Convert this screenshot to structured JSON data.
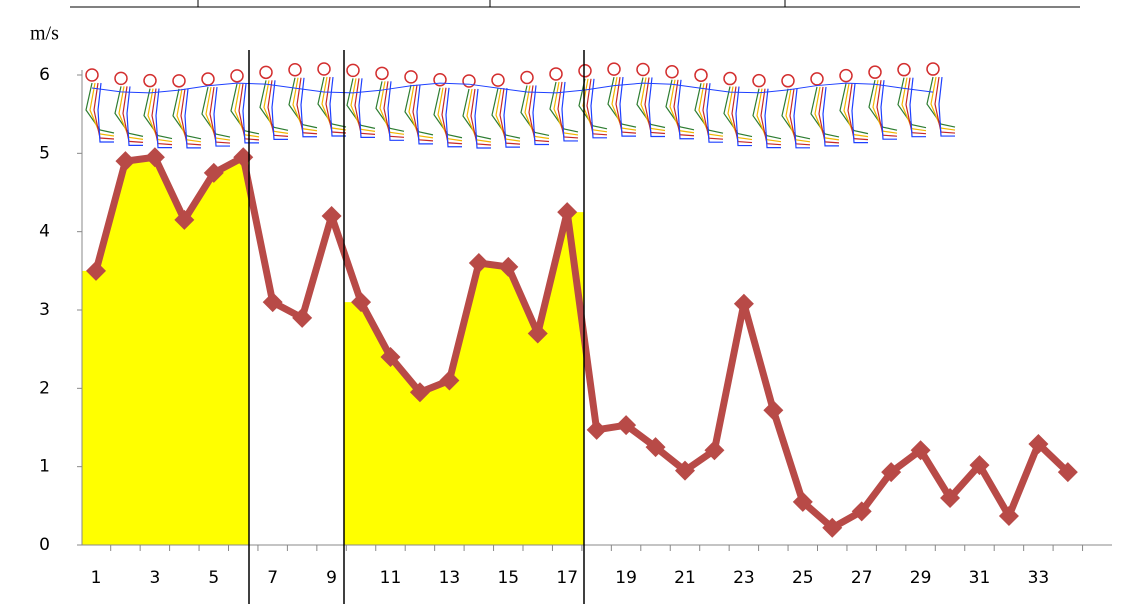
{
  "chart_data": {
    "type": "line",
    "y_label": "m/s",
    "categories": [
      1,
      null,
      3,
      null,
      5,
      null,
      7,
      null,
      9,
      null,
      11,
      null,
      13,
      null,
      15,
      null,
      17,
      null,
      19,
      null,
      21,
      null,
      23,
      null,
      25,
      null,
      27,
      null,
      29,
      null,
      31,
      null,
      33,
      null
    ],
    "values": [
      3.5,
      4.9,
      4.95,
      4.15,
      4.75,
      4.95,
      3.1,
      2.9,
      4.2,
      3.1,
      2.4,
      1.95,
      2.1,
      3.6,
      3.55,
      2.7,
      4.25,
      1.47,
      1.53,
      1.25,
      0.95,
      1.21,
      3.08,
      1.72,
      0.55,
      0.22,
      0.43,
      0.93,
      1.21,
      0.6,
      1.02,
      0.37,
      1.29,
      0.93
    ],
    "color": "#b84a47",
    "area_color": "#ffff00",
    "ylim": [
      0,
      6
    ],
    "yticks": [
      0,
      1,
      2,
      3,
      4,
      5,
      6
    ]
  }
}
